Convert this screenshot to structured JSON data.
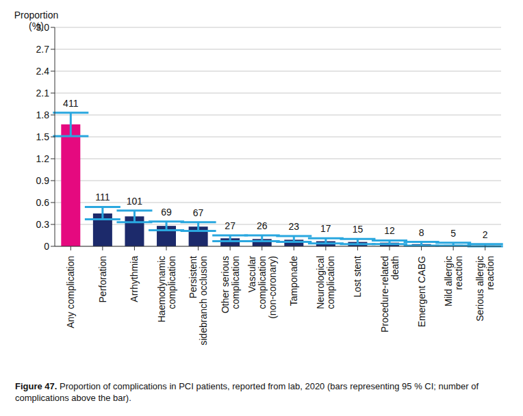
{
  "chart_data": {
    "type": "bar",
    "title": "Figure 47. Proportion of complications in PCI patients, reported from lab, 2020 (bars representing 95 % CI; number of complications above the bar).",
    "y_label": "Proportion (%)",
    "categories": [
      "Any complication",
      "Perforation",
      "Arrhythmia",
      "Haemodynamic complication",
      "Persistent sidebranch occlusion",
      "Other serious complication",
      "Vascular complication (non-coronary)",
      "Tamponade",
      "Neurological complication",
      "Lost stent",
      "Procedure-related death",
      "Emergent CABG",
      "Mild allergic reaction",
      "Serious allergic reaction"
    ],
    "values": [
      1.67,
      0.45,
      0.41,
      0.28,
      0.27,
      0.11,
      0.1,
      0.09,
      0.07,
      0.06,
      0.05,
      0.03,
      0.02,
      0.01
    ],
    "ci_low": [
      1.51,
      0.37,
      0.33,
      0.22,
      0.21,
      0.07,
      0.07,
      0.06,
      0.04,
      0.03,
      0.03,
      0.01,
      0.01,
      0.0
    ],
    "ci_high": [
      1.83,
      0.54,
      0.49,
      0.34,
      0.33,
      0.15,
      0.15,
      0.14,
      0.11,
      0.1,
      0.08,
      0.06,
      0.05,
      0.03
    ],
    "counts": [
      411,
      111,
      101,
      69,
      67,
      27,
      26,
      23,
      17,
      15,
      12,
      8,
      5,
      2
    ],
    "colors": [
      "#e5097f",
      "#1c2a6b",
      "#1c2a6b",
      "#1c2a6b",
      "#1c2a6b",
      "#1c2a6b",
      "#1c2a6b",
      "#1c2a6b",
      "#1c2a6b",
      "#1c2a6b",
      "#1c2a6b",
      "#1c2a6b",
      "#1c2a6b",
      "#1c2a6b"
    ],
    "ylim": [
      0,
      3
    ],
    "yticks": [
      0,
      0.3,
      0.6,
      0.9,
      1.2,
      1.5,
      1.8,
      2.1,
      2.4,
      2.7,
      {
        "value": 3,
        "label": "3.0"
      }
    ],
    "grid": true
  }
}
